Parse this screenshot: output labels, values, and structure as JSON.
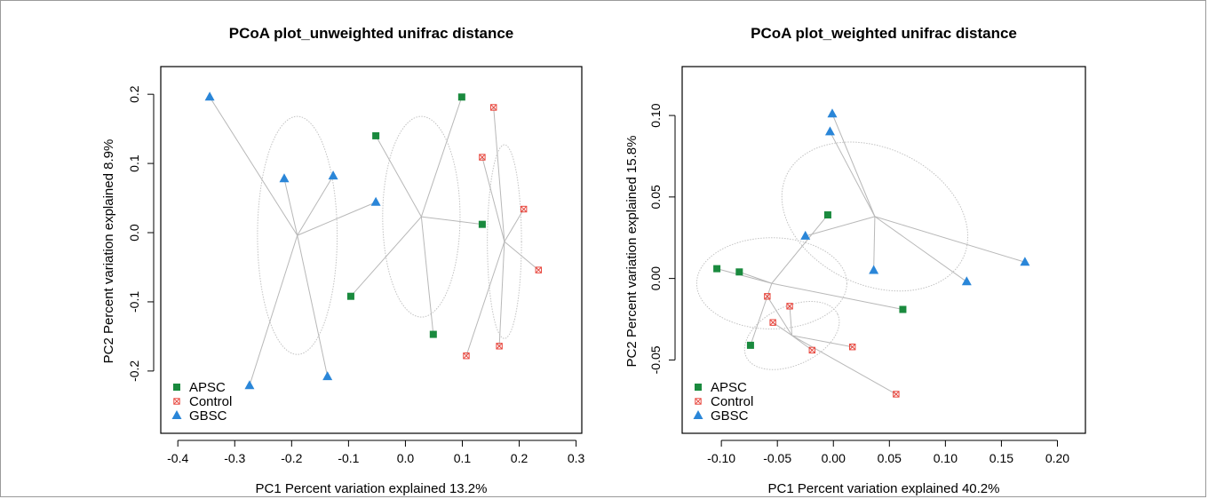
{
  "colors": {
    "APSC": "#1a8a3e",
    "Control": "#e8483f",
    "GBSC": "#2a86d8",
    "spider": "#b8b8b8",
    "ellipse": "#c2c2c2"
  },
  "chart_data": [
    {
      "type": "scatter",
      "title": "PCoA plot_unweighted unifrac distance",
      "xlabel": "PC1 Percent variation explained 13.2%",
      "ylabel": "PC2 Percent variation explained 8.9%",
      "xlim": [
        -0.43,
        0.31
      ],
      "ylim": [
        -0.29,
        0.24
      ],
      "xticks": [
        -0.4,
        -0.3,
        -0.2,
        -0.1,
        0.0,
        0.1,
        0.2,
        0.3
      ],
      "xtick_labels": [
        "-0.4",
        "-0.3",
        "-0.2",
        "-0.1",
        "0.0",
        "0.1",
        "0.2",
        "0.3"
      ],
      "yticks": [
        -0.2,
        -0.1,
        0.0,
        0.1,
        0.2
      ],
      "ytick_labels": [
        "-0.2",
        "-0.1",
        "0.0",
        "0.1",
        "0.2"
      ],
      "legend": {
        "position": "bottom-left",
        "entries": [
          "APSC",
          "Control",
          "GBSC"
        ]
      },
      "series": [
        {
          "name": "APSC",
          "marker": "square",
          "centroid": [
            0.028,
            0.023
          ],
          "ellipse": {
            "rx": 0.068,
            "ry": 0.145,
            "angle_deg": 0
          },
          "points": [
            [
              0.099,
              0.196
            ],
            [
              -0.052,
              0.14
            ],
            [
              0.135,
              0.012
            ],
            [
              -0.096,
              -0.092
            ],
            [
              0.049,
              -0.147
            ]
          ]
        },
        {
          "name": "Control",
          "marker": "boxed-x",
          "centroid": [
            0.174,
            -0.013
          ],
          "ellipse": {
            "rx": 0.03,
            "ry": 0.14,
            "angle_deg": 0
          },
          "points": [
            [
              0.155,
              0.181
            ],
            [
              0.135,
              0.109
            ],
            [
              0.208,
              0.034
            ],
            [
              0.234,
              -0.054
            ],
            [
              0.107,
              -0.178
            ],
            [
              0.165,
              -0.164
            ]
          ]
        },
        {
          "name": "GBSC",
          "marker": "triangle",
          "centroid": [
            -0.19,
            -0.004
          ],
          "ellipse": {
            "rx": 0.07,
            "ry": 0.172,
            "angle_deg": 0
          },
          "points": [
            [
              -0.344,
              0.196
            ],
            [
              -0.213,
              0.078
            ],
            [
              -0.127,
              0.082
            ],
            [
              -0.052,
              0.044
            ],
            [
              -0.274,
              -0.221
            ],
            [
              -0.137,
              -0.208
            ]
          ]
        }
      ]
    },
    {
      "type": "scatter",
      "title": "PCoA plot_weighted unifrac distance",
      "xlabel": "PC1 Percent variation explained 40.2%",
      "ylabel": "PC2 Percent variation explained 15.8%",
      "xlim": [
        -0.135,
        0.225
      ],
      "ylim": [
        -0.095,
        0.13
      ],
      "xticks": [
        -0.1,
        -0.05,
        0.0,
        0.05,
        0.1,
        0.15,
        0.2
      ],
      "xtick_labels": [
        "-0.10",
        "-0.05",
        "0.00",
        "0.05",
        "0.10",
        "0.15",
        "0.20"
      ],
      "yticks": [
        -0.05,
        0.0,
        0.05,
        0.1
      ],
      "ytick_labels": [
        "-0.05",
        "0.00",
        "0.05",
        "0.10"
      ],
      "legend": {
        "position": "bottom-left",
        "entries": [
          "APSC",
          "Control",
          "GBSC"
        ]
      },
      "series": [
        {
          "name": "APSC",
          "marker": "square",
          "centroid": [
            -0.055,
            -0.003
          ],
          "ellipse": {
            "rx": 0.067,
            "ry": 0.028,
            "angle_deg": 0
          },
          "points": [
            [
              -0.005,
              0.039
            ],
            [
              -0.104,
              0.006
            ],
            [
              -0.084,
              0.004
            ],
            [
              0.062,
              -0.019
            ],
            [
              -0.074,
              -0.041
            ]
          ]
        },
        {
          "name": "Control",
          "marker": "boxed-x",
          "centroid": [
            -0.037,
            -0.035
          ],
          "ellipse": {
            "rx": 0.045,
            "ry": 0.018,
            "angle_deg": 25
          },
          "points": [
            [
              -0.059,
              -0.011
            ],
            [
              -0.039,
              -0.017
            ],
            [
              -0.054,
              -0.027
            ],
            [
              -0.019,
              -0.044
            ],
            [
              0.017,
              -0.042
            ],
            [
              0.056,
              -0.071
            ]
          ]
        },
        {
          "name": "GBSC",
          "marker": "triangle",
          "centroid": [
            0.037,
            0.038
          ],
          "ellipse": {
            "rx": 0.087,
            "ry": 0.042,
            "angle_deg": -25
          },
          "points": [
            [
              -0.001,
              0.101
            ],
            [
              -0.003,
              0.09
            ],
            [
              -0.025,
              0.026
            ],
            [
              0.036,
              0.005
            ],
            [
              0.119,
              -0.002
            ],
            [
              0.171,
              0.01
            ]
          ]
        }
      ]
    }
  ]
}
